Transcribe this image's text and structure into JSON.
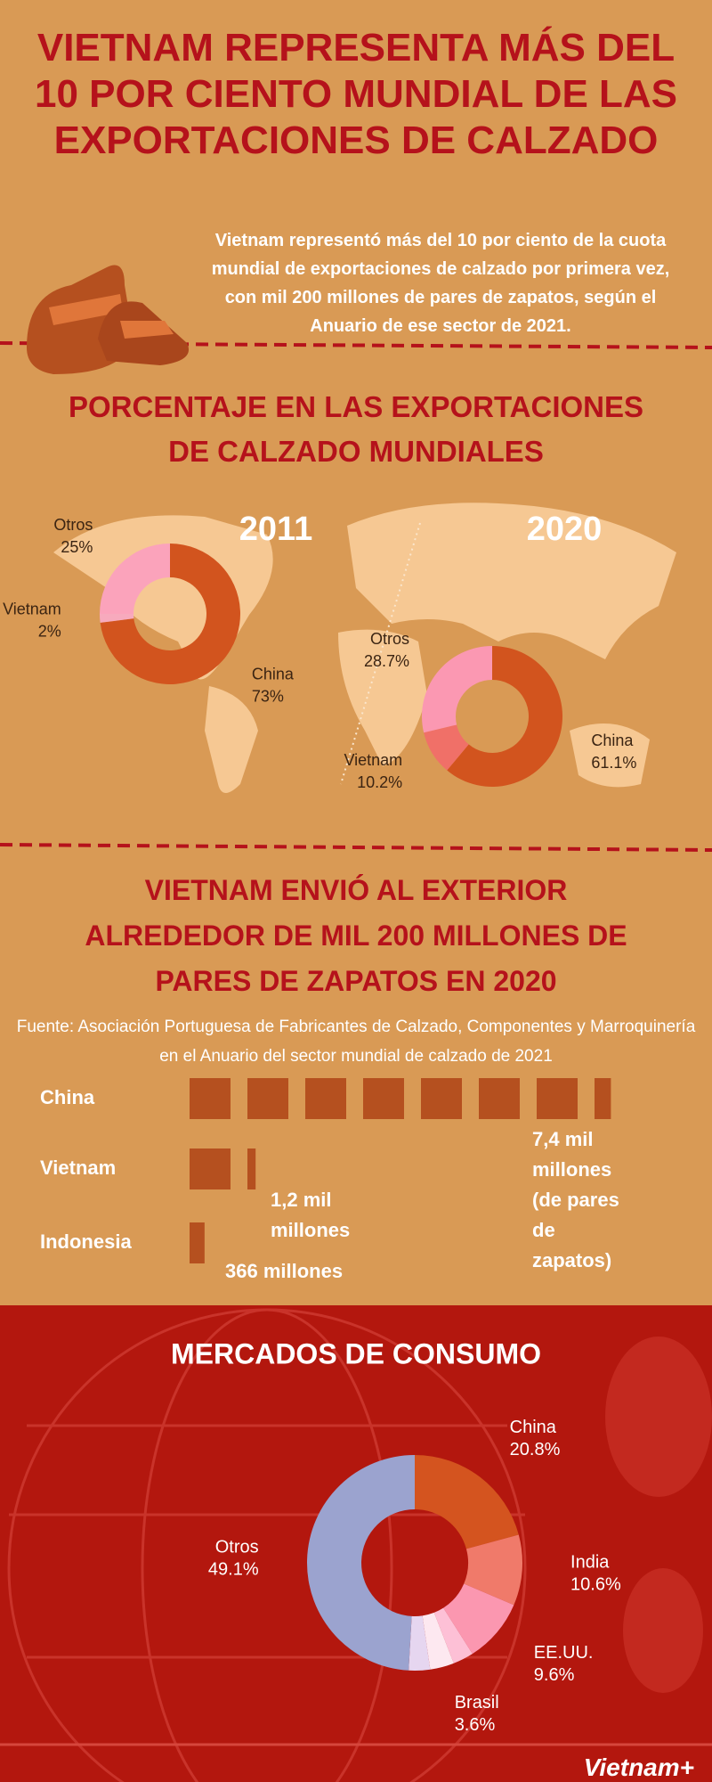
{
  "header": {
    "title": "VIETNAM REPRESENTA MÁS DEL 10 POR CIENTO MUNDIAL DE LAS EXPORTACIONES DE CALZADO",
    "intro": "Vietnam representó más del 10 por ciento de la cuota mundial de exportaciones de calzado por primera vez, con mil 200 millones de pares de zapatos, según el Anuario de ese sector de 2021."
  },
  "world_section": {
    "title": "PORCENTAJE EN LAS EXPORTACIONES DE CALZADO MUNDIALES"
  },
  "brand": "Vietnam+",
  "chart_data": [
    {
      "type": "donut",
      "title": "2011",
      "categories": [
        "China",
        "Vietnam",
        "Otros"
      ],
      "values": [
        73,
        2,
        25
      ],
      "value_labels": [
        "73%",
        "2%",
        "25%"
      ],
      "colors": [
        "#d2541e",
        "#f7aabd",
        "#fba3bb"
      ]
    },
    {
      "type": "donut",
      "title": "2020",
      "categories": [
        "China",
        "Vietnam",
        "Otros"
      ],
      "values": [
        61.1,
        10.2,
        28.7
      ],
      "value_labels": [
        "61.1%",
        "10.2%",
        "28.7%"
      ],
      "colors": [
        "#d2541e",
        "#f07068",
        "#fb98b2"
      ]
    },
    {
      "type": "pictograph",
      "title": "VIETNAM ENVIÓ AL EXTERIOR ALREDEDOR DE MIL 200 MILLONES DE PARES DE ZAPATOS EN 2020",
      "subtitle": "Fuente:  Asociación Portuguesa de Fabricantes de Calzado, Componentes y Marroquinería en el Anuario del sector mundial de calzado de 2021",
      "categories": [
        "China",
        "Vietnam",
        "Indonesia"
      ],
      "values": [
        7400,
        1200,
        366
      ],
      "value_labels": [
        "7,4 mil millones (de pares de zapatos)",
        "1,2 mil millones",
        "366 millones"
      ],
      "color": "#b5501f"
    },
    {
      "type": "donut",
      "title": "MERCADOS DE CONSUMO",
      "categories": [
        "China",
        "India",
        "EE.UU.",
        null,
        "Brasil",
        null,
        "Otros"
      ],
      "values": [
        20.8,
        10.6,
        9.6,
        3.1,
        3.6,
        3.2,
        49.1
      ],
      "value_labels": [
        "20.8%",
        "10.6%",
        "9.6%",
        null,
        "3.6%",
        null,
        "49.1%"
      ],
      "colors": [
        "#d4541f",
        "#f07a6a",
        "#fb97b0",
        "#fdc0d6",
        "#fde8f0",
        "#e6d6f0",
        "#9ba3cf"
      ]
    }
  ]
}
